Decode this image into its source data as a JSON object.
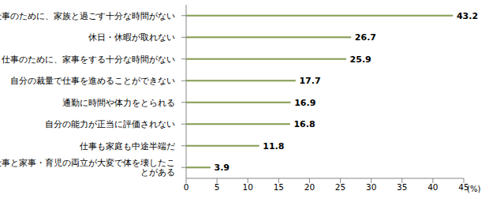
{
  "chart_data": {
    "type": "bar",
    "orientation": "horizontal",
    "categories": [
      "仕事のために、家族と過ごす十分な時間がない",
      "休日・休暇が取れない",
      "仕事のために、家事をする十分な時間がない",
      "自分の裁量で仕事を進めることができない",
      "通勤に時間や体力をとられる",
      "自分の能力が正当に評価されない",
      "仕事も家庭も中途半端だ",
      "仕事と家事・育児の両立が大変で体を壊したことがある"
    ],
    "values": [
      43.2,
      26.7,
      25.9,
      17.7,
      16.9,
      16.8,
      11.8,
      3.9
    ],
    "color": "#9bbb59",
    "xlabel": "(%)",
    "xlim": [
      0,
      45
    ],
    "xticks": [
      0,
      5,
      10,
      15,
      20,
      25,
      30,
      35,
      40,
      45
    ],
    "grid": false,
    "data_labels": true
  }
}
